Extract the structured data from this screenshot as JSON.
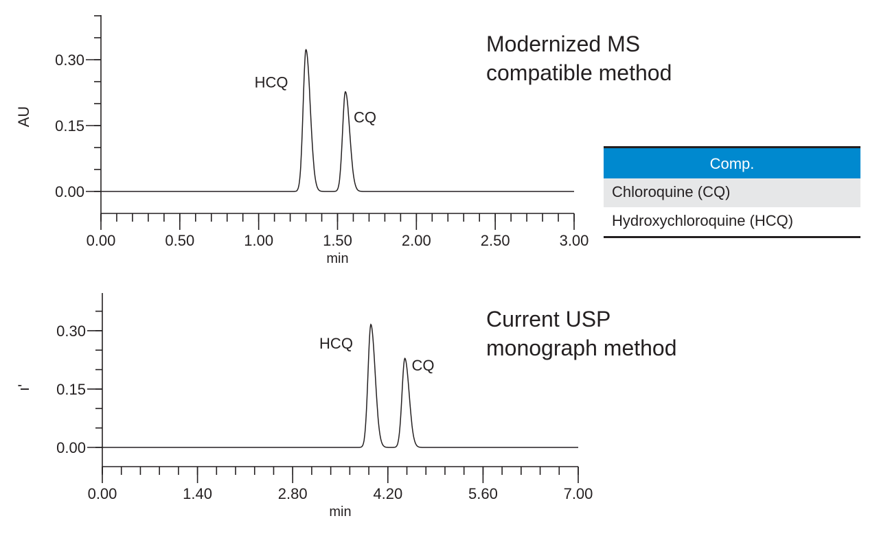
{
  "chart_data": [
    {
      "type": "line",
      "title": "Modernized MS compatible method",
      "title_lines": [
        "Modernized MS",
        "compatible method"
      ],
      "xlabel": "min",
      "ylabel": "AU",
      "xlim": [
        0,
        3.0
      ],
      "ylim": [
        -0.05,
        0.4
      ],
      "xticks": [
        "0.00",
        "0.50",
        "1.00",
        "1.50",
        "2.00",
        "2.50",
        "3.00"
      ],
      "xtick_values": [
        0,
        0.5,
        1.0,
        1.5,
        2.0,
        2.5,
        3.0
      ],
      "x_minor_step": 0.1,
      "yticks": [
        "0.00",
        "0.15",
        "0.30"
      ],
      "ytick_values": [
        0,
        0.15,
        0.3
      ],
      "y_minor_step": 0.05,
      "grid": false,
      "peaks": [
        {
          "label": "HCQ",
          "rt": 1.3,
          "height": 0.323
        },
        {
          "label": "CQ",
          "rt": 1.55,
          "height": 0.227
        }
      ]
    },
    {
      "type": "line",
      "title": "Current USP monograph method",
      "title_lines": [
        "Current USP",
        "monograph method"
      ],
      "xlabel": "min",
      "ylabel": "ı'",
      "xlim": [
        0,
        7.0
      ],
      "ylim": [
        -0.05,
        0.4
      ],
      "xticks": [
        "0.00",
        "1.40",
        "2.80",
        "4.20",
        "5.60",
        "7.00"
      ],
      "xtick_values": [
        0,
        1.4,
        2.8,
        4.2,
        5.6,
        7.0
      ],
      "x_minor_step": 0.28,
      "yticks": [
        "0.00",
        "0.15",
        "0.30"
      ],
      "ytick_values": [
        0,
        0.15,
        0.3
      ],
      "y_minor_step": 0.05,
      "grid": false,
      "peaks": [
        {
          "label": "HCQ",
          "rt": 3.95,
          "height": 0.316
        },
        {
          "label": "CQ",
          "rt": 4.45,
          "height": 0.229
        }
      ]
    }
  ],
  "table": {
    "header": "Comp.",
    "rows": [
      "Chloroquine (CQ)",
      "Hydroxychloroquine (HCQ)"
    ]
  },
  "colors": {
    "header": "#0089cf",
    "row_shade": "#e6e7e8",
    "line": "#231f20"
  }
}
